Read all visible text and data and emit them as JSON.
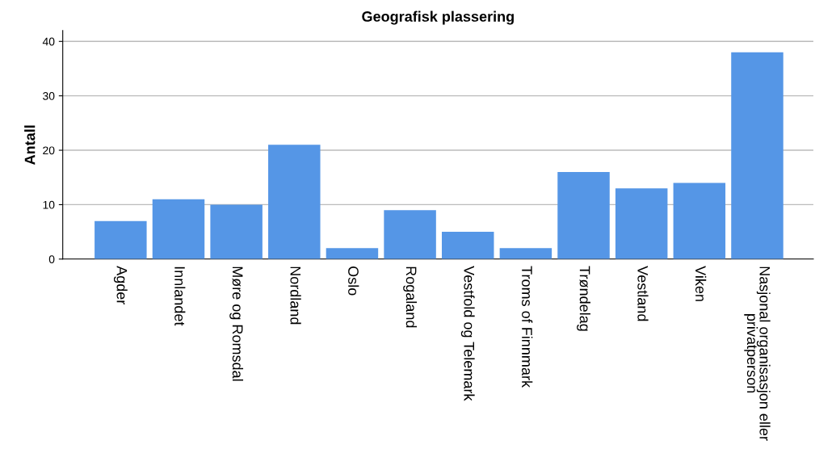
{
  "chart_data": {
    "type": "bar",
    "title": "Geografisk plassering",
    "ylabel": "Antall",
    "categories": [
      "Agder",
      "Innlandet",
      "Møre og Romsdal",
      "Nordland",
      "Oslo",
      "Rogaland",
      "Vestfold og Telemark",
      "Troms of Finnmark",
      "Trøndelag",
      "Vestland",
      "Viken",
      "Nasjonal organisasjon eller privatperson"
    ],
    "values": [
      7,
      11,
      10,
      21,
      2,
      9,
      5,
      2,
      16,
      13,
      14,
      38
    ],
    "color": "#5596e6",
    "ylim": [
      0,
      42
    ],
    "yticks": [
      0,
      10,
      20,
      30,
      40
    ],
    "grid": "y"
  }
}
